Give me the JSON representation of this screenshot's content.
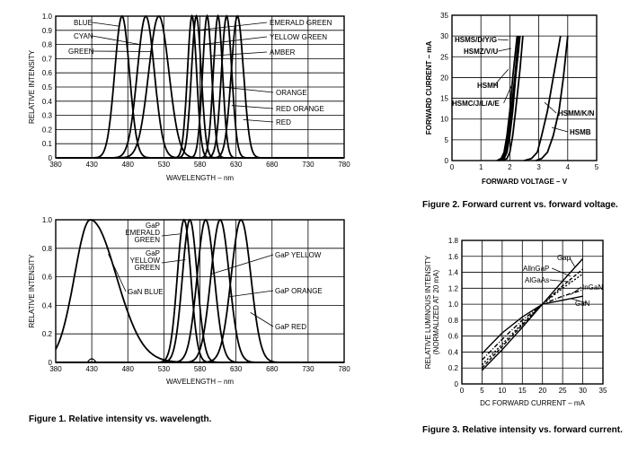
{
  "captions": {
    "fig1": "Figure 1. Relative intensity vs. wavelength.",
    "fig2": "Figure 2. Forward current vs. forward voltage.",
    "fig3": "Figure 3. Relative intensity vs. forward current."
  },
  "chart_data": [
    {
      "id": "chart1a",
      "type": "line",
      "title": "",
      "xlabel": "WAVELENGTH – nm",
      "ylabel": "RELATIVE INTENSITY",
      "xlim": [
        380,
        780
      ],
      "ylim": [
        0,
        1.0
      ],
      "x_ticks": [
        "380",
        "430",
        "480",
        "530",
        "580",
        "630",
        "680",
        "730",
        "780"
      ],
      "y_ticks": [
        "0",
        "0.1",
        "0.2",
        "0.3",
        "0.4",
        "0.5",
        "0.6",
        "0.7",
        "0.8",
        "0.9",
        "1.0"
      ],
      "grid": true,
      "series": [
        {
          "name": "BLUE",
          "peak": 472,
          "fwhm": 24,
          "label_side": "left"
        },
        {
          "name": "CYAN",
          "peak": 505,
          "fwhm": 28,
          "label_side": "left"
        },
        {
          "name": "GREEN",
          "peak": 523,
          "fwhm": 33,
          "label_side": "left"
        },
        {
          "name": "EMERALD GREEN",
          "peak": 569,
          "fwhm": 15,
          "label_side": "right"
        },
        {
          "name": "YELLOW GREEN",
          "peak": 575,
          "fwhm": 16,
          "label_side": "right"
        },
        {
          "name": "AMBER",
          "peak": 590,
          "fwhm": 15,
          "label_side": "right"
        },
        {
          "name": "ORANGE",
          "peak": 605,
          "fwhm": 15,
          "label_side": "right"
        },
        {
          "name": "RED ORANGE",
          "peak": 617,
          "fwhm": 17,
          "label_side": "right"
        },
        {
          "name": "RED",
          "peak": 632,
          "fwhm": 20,
          "label_side": "right"
        }
      ]
    },
    {
      "id": "chart1b",
      "type": "line",
      "title": "",
      "xlabel": "WAVELENGTH – nm",
      "ylabel": "RELATIVE INTENSITY",
      "xlim": [
        380,
        780
      ],
      "ylim": [
        0,
        1.0
      ],
      "x_ticks": [
        "380",
        "430",
        "480",
        "530",
        "580",
        "630",
        "680",
        "730",
        "780"
      ],
      "y_ticks": [
        "0",
        "0.2",
        "0.4",
        "0.6",
        "0.8",
        "1.0"
      ],
      "grid": true,
      "series": [
        {
          "name": "GaN BLUE",
          "peak": 428,
          "fwhm": 62
        },
        {
          "name": "GaP EMERALD GREEN",
          "peak": 558,
          "fwhm": 22
        },
        {
          "name": "GaP YELLOW GREEN",
          "peak": 566,
          "fwhm": 24
        },
        {
          "name": "GaP YELLOW",
          "peak": 588,
          "fwhm": 28
        },
        {
          "name": "GaP ORANGE",
          "peak": 608,
          "fwhm": 30
        },
        {
          "name": "GaP RED",
          "peak": 637,
          "fwhm": 32
        }
      ]
    },
    {
      "id": "chart2",
      "type": "line",
      "title": "",
      "xlabel": "FORWARD VOLTAGE – V",
      "ylabel": "FORWARD CURRENT – mA",
      "xlim": [
        0,
        5
      ],
      "ylim": [
        0,
        35
      ],
      "x_ticks": [
        "0",
        "1",
        "2",
        "3",
        "4",
        "5"
      ],
      "y_ticks": [
        "0",
        "5",
        "10",
        "15",
        "20",
        "25",
        "30",
        "35"
      ],
      "grid": true,
      "series": [
        {
          "name": "HSMS/D/Y/G",
          "x": [
            1.55,
            1.7,
            1.8,
            1.9,
            2.0,
            2.1,
            2.25
          ],
          "y": [
            0,
            0.5,
            2,
            6,
            12,
            20,
            30
          ]
        },
        {
          "name": "HSMZ/V/U",
          "x": [
            1.65,
            1.8,
            1.9,
            2.0,
            2.1,
            2.2,
            2.35
          ],
          "y": [
            0,
            0.5,
            2,
            6,
            12,
            20,
            30
          ]
        },
        {
          "name": "HSMH",
          "x": [
            1.6,
            1.75,
            1.85,
            1.95,
            2.05,
            2.2,
            2.3
          ],
          "y": [
            0,
            0.5,
            2,
            6,
            12,
            22,
            30
          ]
        },
        {
          "name": "HSMC/J/L/A/E",
          "x": [
            1.75,
            1.9,
            2.0,
            2.1,
            2.2,
            2.35,
            2.45
          ],
          "y": [
            0,
            0.5,
            2,
            6,
            12,
            22,
            30
          ]
        },
        {
          "name": "HSMM/K/N",
          "x": [
            2.5,
            2.75,
            2.95,
            3.1,
            3.3,
            3.5,
            3.75
          ],
          "y": [
            0,
            0.5,
            2,
            6,
            12,
            20,
            30
          ]
        },
        {
          "name": "HSMB",
          "x": [
            2.9,
            3.1,
            3.3,
            3.5,
            3.7,
            3.85,
            4.0
          ],
          "y": [
            0,
            0.5,
            2,
            6,
            12,
            20,
            30
          ]
        }
      ]
    },
    {
      "id": "chart3",
      "type": "line",
      "title": "",
      "xlabel": "DC FORWARD CURRENT – mA",
      "ylabel": "RELATIVE LUMINOUS INTENSITY (NORMALIZED AT 20 mA)",
      "xlim": [
        0,
        35
      ],
      "ylim": [
        0,
        1.8
      ],
      "x_ticks": [
        "0",
        "5",
        "10",
        "15",
        "20",
        "25",
        "30",
        "35"
      ],
      "y_ticks": [
        "0",
        "0.2",
        "0.4",
        "0.6",
        "0.8",
        "1.0",
        "1.2",
        "1.4",
        "1.6",
        "1.8"
      ],
      "grid": true,
      "series": [
        {
          "name": "Gap",
          "x": [
            5,
            10,
            15,
            20,
            25,
            30
          ],
          "y": [
            0.17,
            0.43,
            0.71,
            1.0,
            1.29,
            1.57
          ]
        },
        {
          "name": "AllnGaP",
          "x": [
            5,
            10,
            15,
            20,
            25,
            30
          ],
          "y": [
            0.2,
            0.47,
            0.74,
            1.0,
            1.23,
            1.44
          ]
        },
        {
          "name": "AlGaAs",
          "x": [
            5,
            10,
            15,
            20,
            25,
            30
          ],
          "y": [
            0.24,
            0.5,
            0.76,
            1.0,
            1.2,
            1.38
          ]
        },
        {
          "name": "InGaN",
          "x": [
            5,
            10,
            15,
            20,
            25,
            30
          ],
          "y": [
            0.3,
            0.56,
            0.8,
            1.0,
            1.1,
            1.18
          ]
        },
        {
          "name": "GaN",
          "x": [
            5,
            10,
            15,
            20,
            25,
            30
          ],
          "y": [
            0.38,
            0.64,
            0.84,
            1.0,
            1.05,
            1.1
          ]
        }
      ]
    }
  ]
}
